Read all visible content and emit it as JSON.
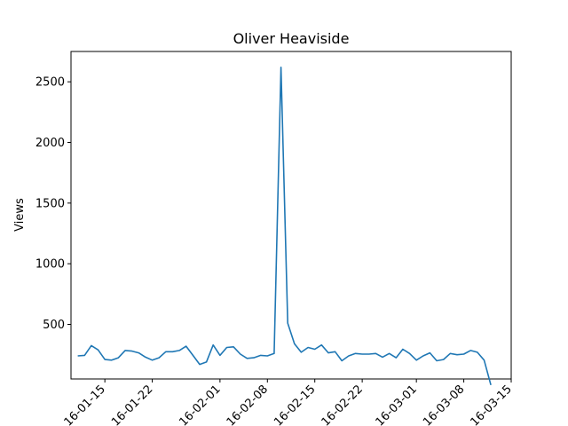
{
  "chart_data": {
    "type": "line",
    "title": "Oliver Heaviside",
    "xlabel": "",
    "ylabel": "Views",
    "grid": false,
    "legend": "none",
    "color": "#1f77b4",
    "xlim": [
      "2016-01-10",
      "2016-03-15"
    ],
    "ylim": [
      50,
      2750
    ],
    "x_ticks": [
      "2016-01-15",
      "2016-01-22",
      "2016-02-01",
      "2016-02-08",
      "2016-02-15",
      "2016-02-22",
      "2016-03-01",
      "2016-03-08",
      "2016-03-15"
    ],
    "x_tick_labels": [
      "16-01-15",
      "16-01-22",
      "16-02-01",
      "16-02-08",
      "16-02-15",
      "16-02-22",
      "16-03-01",
      "16-03-08",
      "16-03-15"
    ],
    "y_ticks": [
      500,
      1000,
      1500,
      2000,
      2500
    ],
    "y_tick_labels": [
      "500",
      "1000",
      "1500",
      "2000",
      "2500"
    ],
    "series": [
      {
        "x": [
          "2016-01-11",
          "2016-01-12",
          "2016-01-13",
          "2016-01-14",
          "2016-01-15",
          "2016-01-16",
          "2016-01-17",
          "2016-01-18",
          "2016-01-19",
          "2016-01-20",
          "2016-01-21",
          "2016-01-22",
          "2016-01-23",
          "2016-01-24",
          "2016-01-25",
          "2016-01-26",
          "2016-01-27",
          "2016-01-28",
          "2016-01-29",
          "2016-01-30",
          "2016-01-31",
          "2016-02-01",
          "2016-02-02",
          "2016-02-03",
          "2016-02-04",
          "2016-02-05",
          "2016-02-06",
          "2016-02-07",
          "2016-02-08",
          "2016-02-09",
          "2016-02-10",
          "2016-02-11",
          "2016-02-12",
          "2016-02-13",
          "2016-02-14",
          "2016-02-15",
          "2016-02-16",
          "2016-02-17",
          "2016-02-18",
          "2016-02-19",
          "2016-02-20",
          "2016-02-21",
          "2016-02-22",
          "2016-02-23",
          "2016-02-24",
          "2016-02-25",
          "2016-02-26",
          "2016-02-27",
          "2016-02-28",
          "2016-02-29",
          "2016-03-01",
          "2016-03-02",
          "2016-03-03",
          "2016-03-04",
          "2016-03-05",
          "2016-03-06",
          "2016-03-07",
          "2016-03-08",
          "2016-03-09",
          "2016-03-10",
          "2016-03-11",
          "2016-03-12",
          "2016-03-13",
          "2016-03-14"
        ],
        "values": [
          240,
          245,
          325,
          290,
          210,
          205,
          225,
          285,
          280,
          265,
          230,
          205,
          225,
          275,
          275,
          285,
          320,
          245,
          170,
          190,
          330,
          245,
          310,
          315,
          255,
          220,
          225,
          245,
          240,
          260,
          2620,
          510,
          340,
          270,
          310,
          295,
          330,
          265,
          275,
          200,
          240,
          260,
          255,
          255,
          260,
          230,
          260,
          225,
          295,
          260,
          205,
          240,
          265,
          200,
          210,
          260,
          250,
          255,
          285,
          270,
          205,
          0,
          0,
          0
        ]
      }
    ]
  }
}
